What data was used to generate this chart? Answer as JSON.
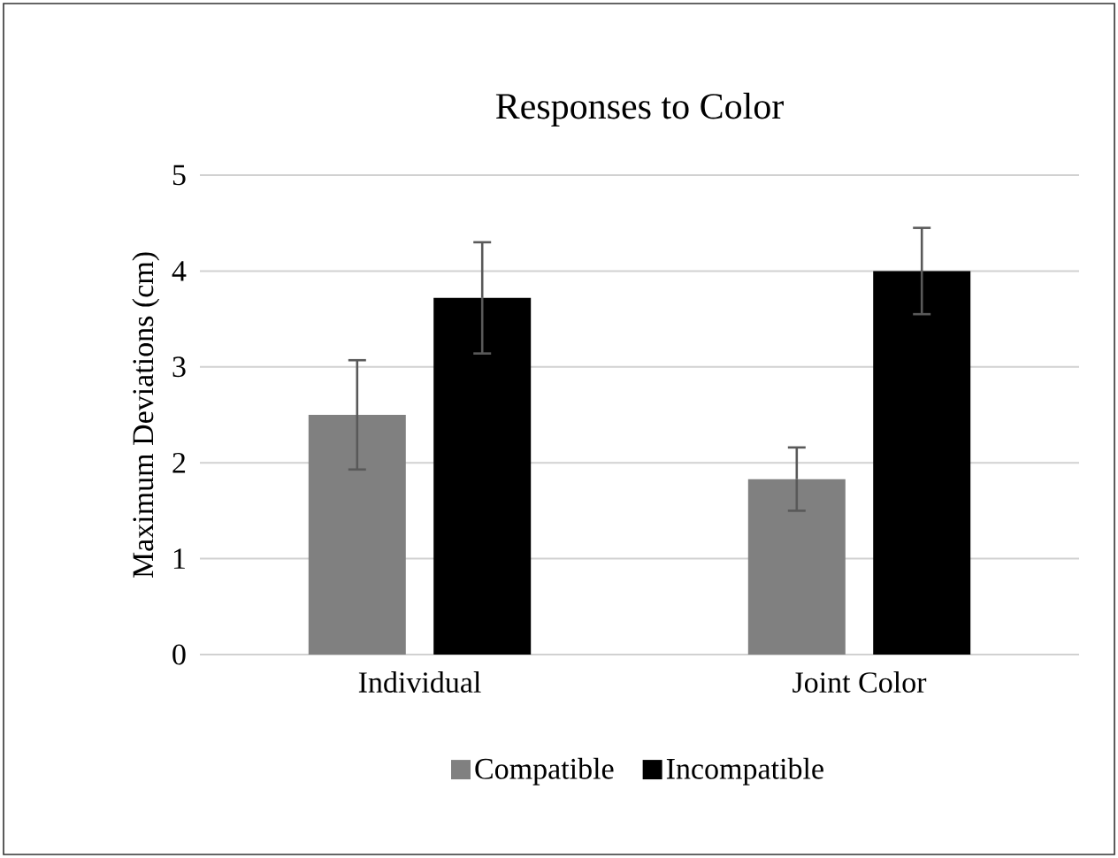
{
  "chart_data": {
    "type": "bar",
    "title": "Responses to Color",
    "ylabel": "Maximum Deviations (cm)",
    "categories": [
      "Individual",
      "Joint Color"
    ],
    "series": [
      {
        "name": "Compatible",
        "color": "#808080",
        "values": [
          2.5,
          1.83
        ],
        "errors": [
          0.57,
          0.33
        ]
      },
      {
        "name": "Incompatible",
        "color": "#000000",
        "values": [
          3.72,
          4.0
        ],
        "errors": [
          0.58,
          0.45
        ]
      }
    ],
    "ylim": [
      0,
      5
    ],
    "yticks": [
      0,
      1,
      2,
      3,
      4,
      5
    ],
    "grid": "y",
    "legend": "bottom"
  }
}
